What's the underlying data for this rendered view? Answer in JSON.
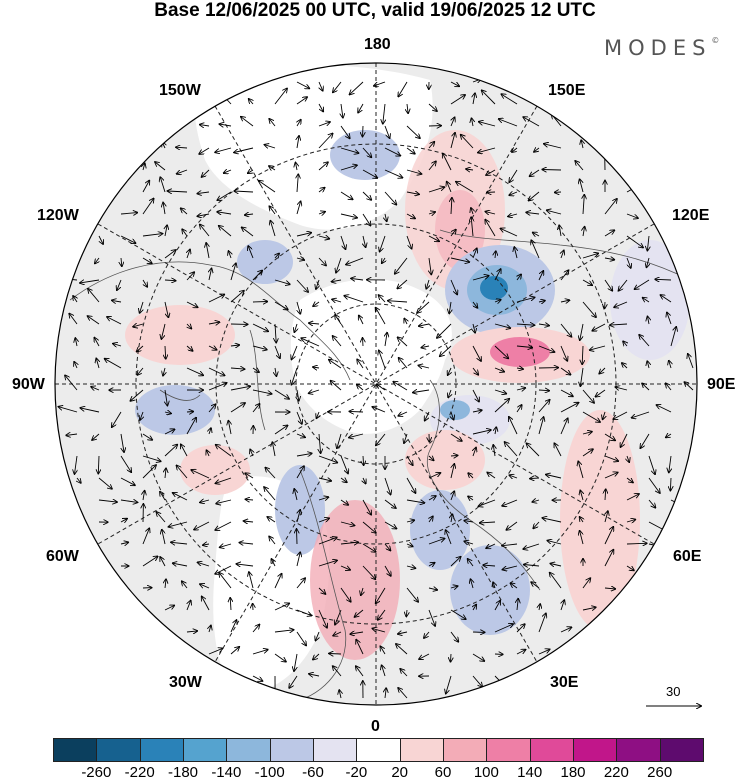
{
  "title": "Base 12/06/2025 00 UTC, valid 19/06/2025 12 UTC",
  "brand": "MODES",
  "brand_mark": "©",
  "longitude_labels": {
    "top": "180",
    "bottom": "0",
    "left": "90W",
    "right": "90E",
    "upper_left_1": "150W",
    "upper_left_2": "120W",
    "upper_right_1": "150E",
    "upper_right_2": "120E",
    "lower_left_1": "60W",
    "lower_left_2": "30W",
    "lower_right_1": "60E",
    "lower_right_2": "30E"
  },
  "wind_scale": {
    "value": "30"
  },
  "colorbar": {
    "colors": [
      "#0b3f5e",
      "#16618f",
      "#2a82b8",
      "#55a3cf",
      "#8db7dc",
      "#bcc8e6",
      "#e4e3f1",
      "#ffffff",
      "#f8d5d4",
      "#f3acb7",
      "#ee7fa6",
      "#e04a99",
      "#c1168a",
      "#8e0f83",
      "#5e0b6e"
    ],
    "ticks": [
      "-260",
      "-220",
      "-180",
      "-140",
      "-100",
      "-60",
      "-20",
      "20",
      "60",
      "100",
      "140",
      "180",
      "220",
      "260"
    ]
  },
  "colors": {
    "land": "#ececec",
    "ocean": "#ffffff",
    "coast": "#555555",
    "grid": "#222222"
  }
}
